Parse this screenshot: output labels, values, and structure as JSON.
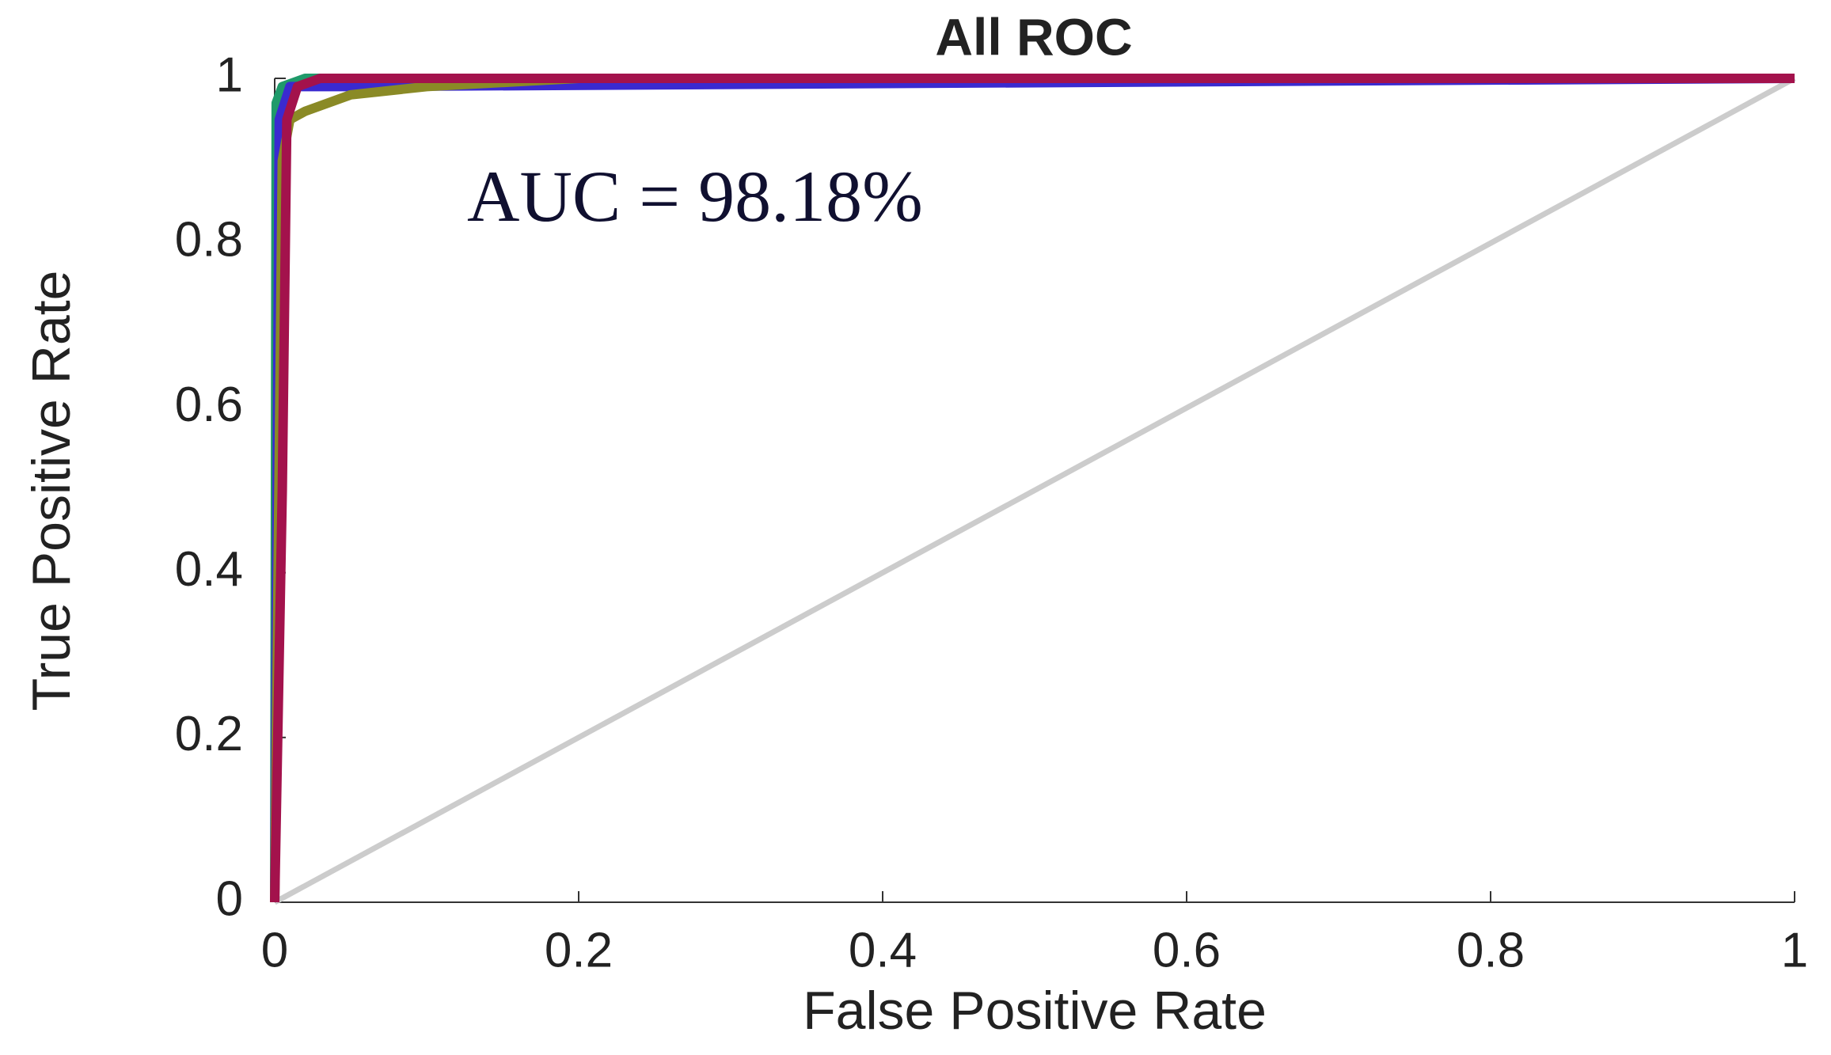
{
  "chart_data": {
    "type": "line",
    "title": "All ROC",
    "annotation": "AUC = 98.18%",
    "x_label": "False Positive Rate",
    "y_label": "True Positive Rate",
    "xlim": [
      0,
      1
    ],
    "ylim": [
      0,
      1
    ],
    "xticks": [
      0,
      0.2,
      0.4,
      0.6,
      0.8,
      1
    ],
    "yticks": [
      0,
      0.2,
      0.4,
      0.6,
      0.8,
      1
    ],
    "grid": false,
    "series": [
      {
        "color": "#cccccc",
        "x": [
          0,
          1
        ],
        "values": [
          0,
          1
        ]
      },
      {
        "color": "#1f9a6a",
        "x": [
          0,
          0.001,
          0.005,
          0.02,
          0.1,
          1
        ],
        "values": [
          0,
          0.97,
          0.99,
          1,
          1,
          1
        ]
      },
      {
        "color": "#3a2ad0",
        "x": [
          0,
          0.003,
          0.01,
          0.05,
          1
        ],
        "values": [
          0,
          0.95,
          0.99,
          0.99,
          1
        ]
      },
      {
        "color": "#8a8a26",
        "x": [
          0,
          0.005,
          0.01,
          0.02,
          0.05,
          0.1,
          0.2,
          0.7,
          1
        ],
        "values": [
          0,
          0.9,
          0.95,
          0.96,
          0.98,
          0.99,
          1,
          1,
          1
        ]
      },
      {
        "color": "#a3124c",
        "x": [
          0,
          0.005,
          0.008,
          0.015,
          0.03,
          0.15,
          1
        ],
        "values": [
          0,
          0.5,
          0.95,
          0.99,
          1,
          1,
          1
        ]
      }
    ]
  }
}
